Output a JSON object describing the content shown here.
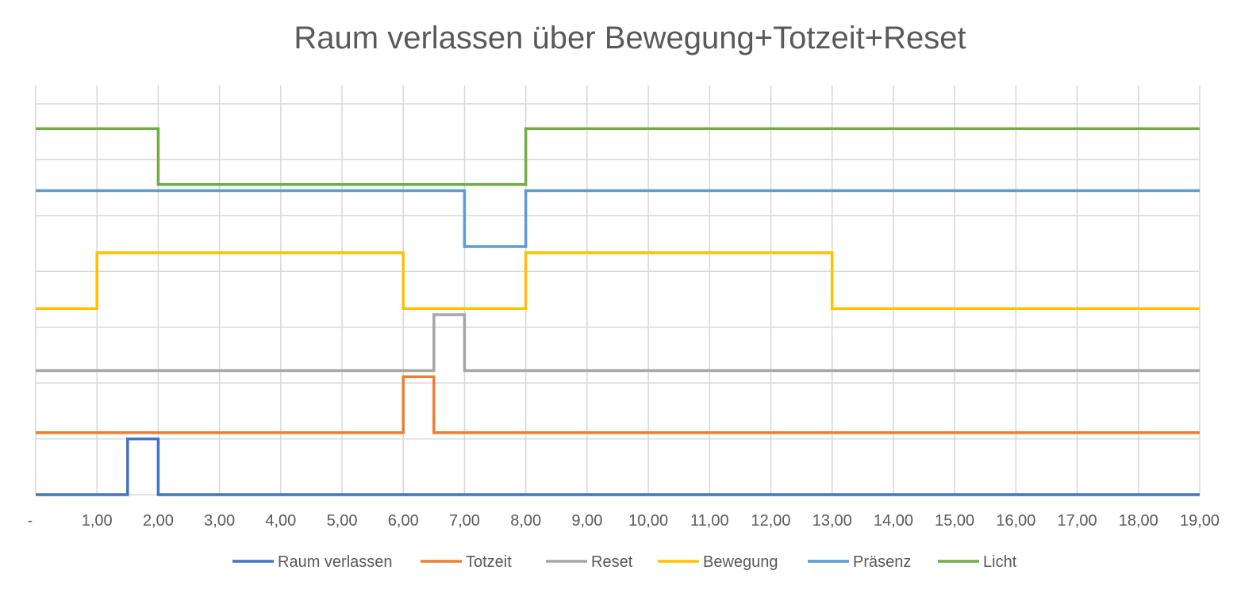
{
  "chart_data": {
    "type": "line",
    "title": "Raum verlassen über Bewegung+Totzeit+Reset",
    "xlim": [
      0,
      19
    ],
    "ylim": [
      0,
      6.6
    ],
    "x_tick_labels": [
      "-",
      "1,00",
      "2,00",
      "3,00",
      "4,00",
      "5,00",
      "6,00",
      "7,00",
      "8,00",
      "9,00",
      "10,00",
      "11,00",
      "12,00",
      "13,00",
      "14,00",
      "15,00",
      "16,00",
      "17,00",
      "18,00",
      "19,00"
    ],
    "grid": true,
    "legend_position": "bottom",
    "series": [
      {
        "name": "Raum verlassen",
        "color": "#4472c4",
        "points": [
          [
            0,
            0
          ],
          [
            1.5,
            0
          ],
          [
            1.5,
            0.9
          ],
          [
            2,
            0.9
          ],
          [
            2,
            0
          ],
          [
            19,
            0
          ]
        ]
      },
      {
        "name": "Totzeit",
        "color": "#ed7d31",
        "points": [
          [
            0,
            1
          ],
          [
            6,
            1
          ],
          [
            6,
            1.9
          ],
          [
            6.5,
            1.9
          ],
          [
            6.5,
            1
          ],
          [
            19,
            1
          ]
        ]
      },
      {
        "name": "Reset",
        "color": "#a5a5a5",
        "points": [
          [
            0,
            2
          ],
          [
            6.5,
            2
          ],
          [
            6.5,
            2.9
          ],
          [
            7,
            2.9
          ],
          [
            7,
            2
          ],
          [
            19,
            2
          ]
        ]
      },
      {
        "name": "Bewegung",
        "color": "#ffc000",
        "points": [
          [
            0,
            3
          ],
          [
            1,
            3
          ],
          [
            1,
            3.9
          ],
          [
            6,
            3.9
          ],
          [
            6,
            3
          ],
          [
            8,
            3
          ],
          [
            8,
            3.9
          ],
          [
            13,
            3.9
          ],
          [
            13,
            3
          ],
          [
            19,
            3
          ]
        ]
      },
      {
        "name": "Präsenz",
        "color": "#5b9bd5",
        "points": [
          [
            0,
            4.9
          ],
          [
            7,
            4.9
          ],
          [
            7,
            4
          ],
          [
            8,
            4
          ],
          [
            8,
            4.9
          ],
          [
            19,
            4.9
          ]
        ]
      },
      {
        "name": "Licht",
        "color": "#70ad47",
        "points": [
          [
            0,
            5.9
          ],
          [
            2,
            5.9
          ],
          [
            2,
            5
          ],
          [
            8,
            5
          ],
          [
            8,
            5.9
          ],
          [
            19,
            5.9
          ]
        ]
      }
    ]
  }
}
